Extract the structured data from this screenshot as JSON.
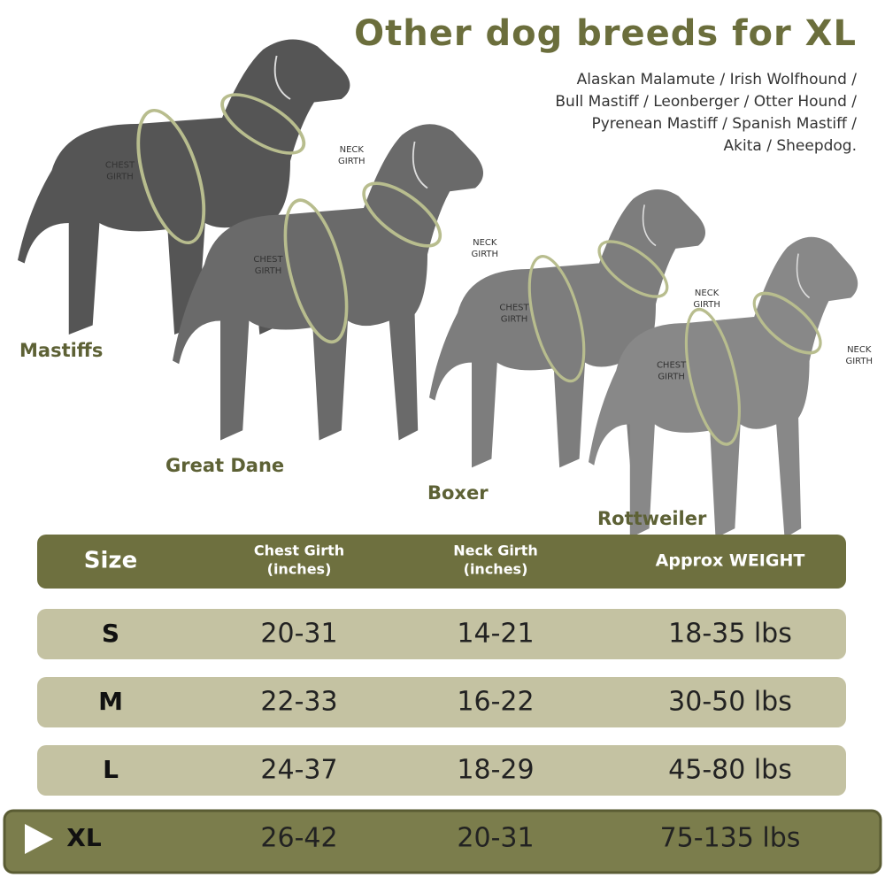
{
  "header": {
    "title": "Other dog breeds for XL",
    "breeds_lines": [
      "Alaskan Malamute / Irish Wolfhound /",
      "Bull Mastiff / Leonberger / Otter Hound /",
      "Pyrenean Mastiff / Spanish Mastiff /",
      "Akita / Sheepdog."
    ]
  },
  "dogs": [
    {
      "name": "Mastiffs",
      "chest_label": [
        "CHEST",
        "GIRTH"
      ],
      "neck_label": [
        "NECK",
        "GIRTH"
      ]
    },
    {
      "name": "Great Dane",
      "chest_label": [
        "CHEST",
        "GIRTH"
      ],
      "neck_label": [
        "NECK",
        "GIRTH"
      ]
    },
    {
      "name": "Boxer",
      "chest_label": [
        "CHEST",
        "GIRTH"
      ],
      "neck_label": [
        "NECK",
        "GIRTH"
      ]
    },
    {
      "name": "Rottweiler",
      "chest_label": [
        "CHEST",
        "GIRTH"
      ],
      "neck_label": [
        "NECK",
        "GIRTH"
      ]
    }
  ],
  "table": {
    "header": [
      [
        "Size"
      ],
      [
        "Chest Girth",
        "(inches)"
      ],
      [
        "Neck Girth",
        "(inches)"
      ],
      [
        "Approx WEIGHT"
      ]
    ],
    "rows": [
      [
        "S",
        "20-31",
        "14-21",
        "18-35 lbs"
      ],
      [
        "M",
        "22-33",
        "16-22",
        "30-50 lbs"
      ],
      [
        "L",
        "24-37",
        "18-29",
        "45-80 lbs"
      ],
      [
        "XL",
        "26-42",
        "20-31",
        "75-135 lbs"
      ]
    ]
  }
}
